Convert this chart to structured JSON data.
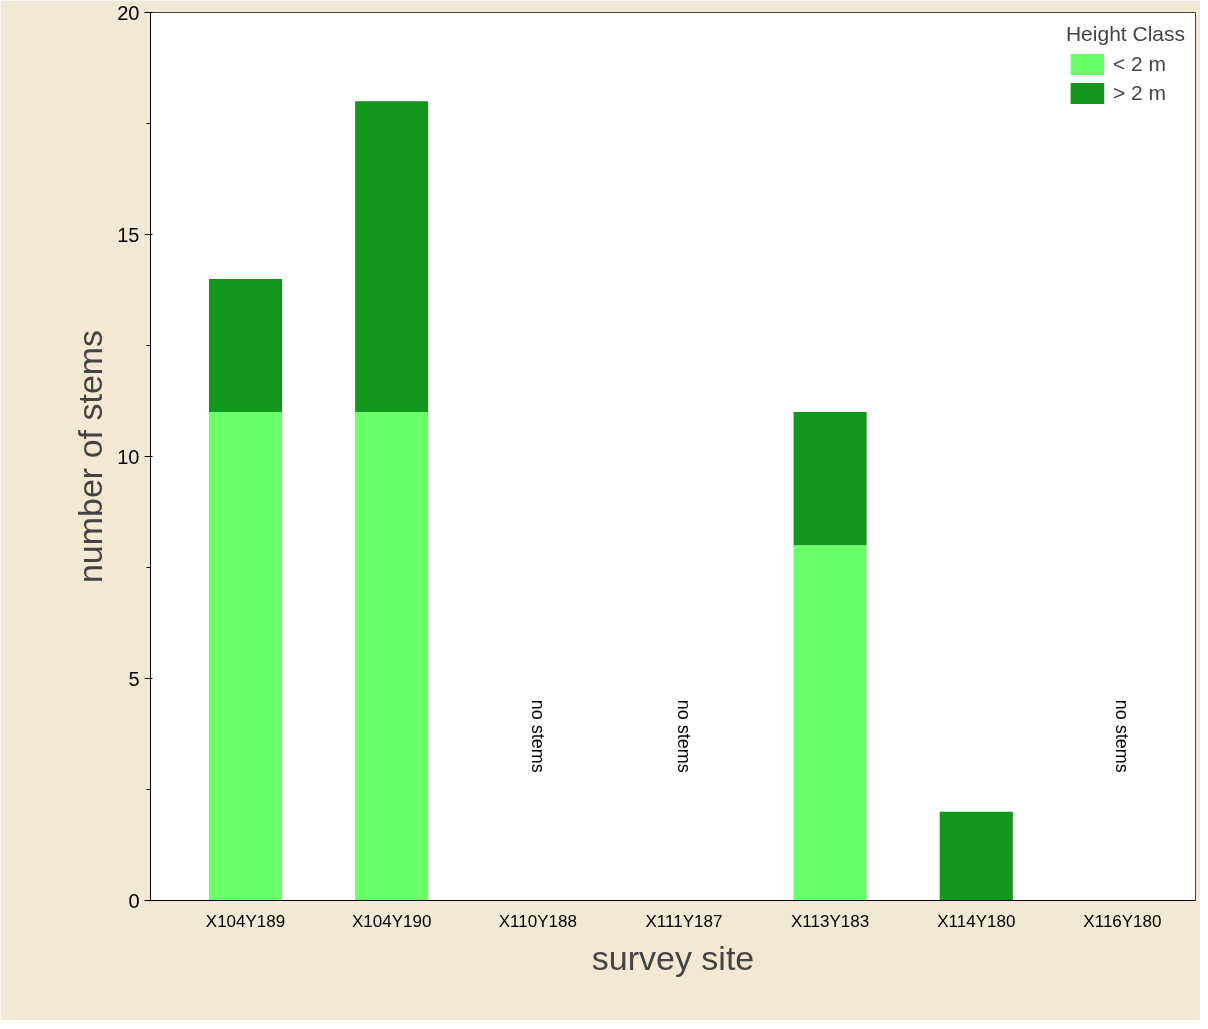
{
  "chart_data": {
    "type": "bar",
    "stacked": true,
    "xlabel": "survey site",
    "ylabel": "number of stems",
    "legend_title": "Height Class",
    "legend": "top right",
    "grid": false,
    "categories": [
      "X104Y189",
      "X104Y190",
      "X110Y188",
      "X111Y187",
      "X113Y183",
      "X114Y180",
      "X116Y180"
    ],
    "series": [
      {
        "name": "< 2 m",
        "color": "#69ff69",
        "values": [
          11,
          11,
          0,
          0,
          8,
          0,
          0
        ]
      },
      {
        "name": "> 2 m",
        "color": "#12961c",
        "values": [
          3,
          7,
          0,
          0,
          3,
          2,
          0
        ]
      }
    ],
    "ylim": [
      0,
      20
    ],
    "yticks": [
      0,
      5,
      10,
      15,
      20
    ],
    "annotations": [
      "no stems",
      "no stems",
      "no stems"
    ]
  }
}
